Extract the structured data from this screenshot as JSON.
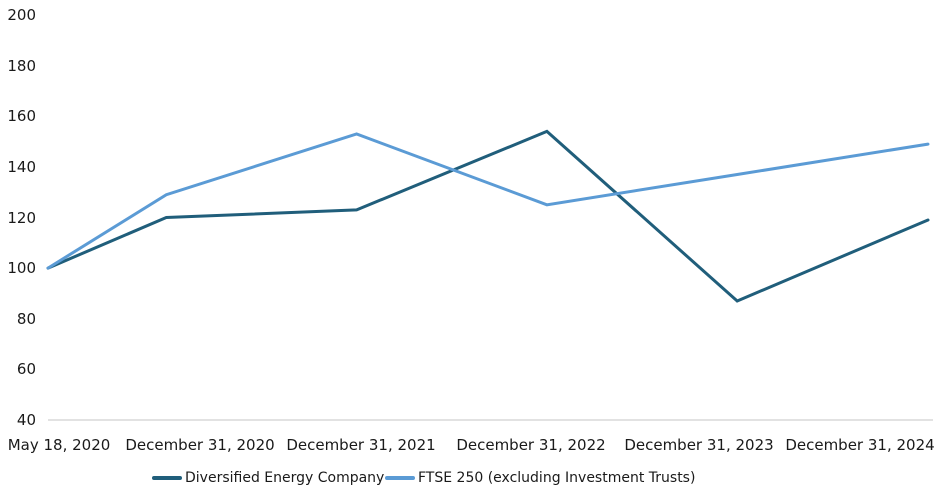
{
  "chart_data": {
    "type": "line",
    "title": "",
    "x_tick_labels": [
      "May 18, 2020",
      "December 31, 2020",
      "December 31, 2021",
      "December 31, 2022",
      "December 31, 2023",
      "December 31, 2024"
    ],
    "x_days": [
      0,
      227,
      592,
      957,
      1322,
      1688
    ],
    "series": [
      {
        "name": "Diversified Energy Company",
        "color": "#205e7b",
        "values": [
          100,
          120,
          123,
          154,
          87,
          119
        ]
      },
      {
        "name": "FTSE 250 (excluding Investment Trusts)",
        "color": "#5b9bd5",
        "values": [
          100,
          129,
          153,
          125,
          137,
          149
        ]
      }
    ],
    "ylim": [
      40,
      200
    ],
    "y_ticks": [
      40,
      60,
      80,
      100,
      120,
      140,
      160,
      180,
      200
    ],
    "index_base": 100,
    "grid": false,
    "legend_position": "bottom",
    "axis_color": "#c6c6c6",
    "text_color": "#1a1a1a",
    "background": "#ffffff"
  }
}
